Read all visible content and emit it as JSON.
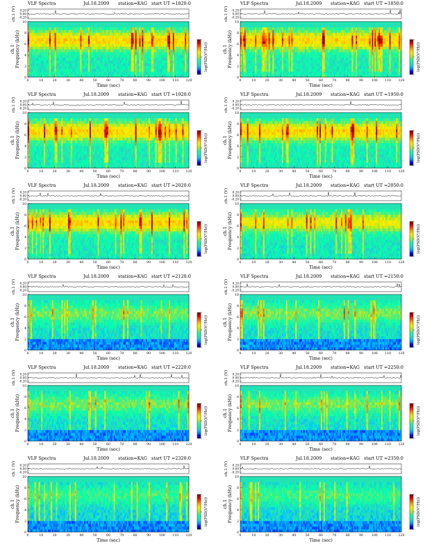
{
  "panel_text": {
    "title": "VLF Spectra",
    "date": "Jul.18.2009",
    "station": "station=KAG",
    "ut_prefix": "start  UT ="
  },
  "chart_data": [
    {
      "type": "heatmap",
      "start_ut": "1820:0",
      "xlabel": "Time (sec)",
      "ylabel": "ch.1\nFrequency (kHz)",
      "top_ylabel": "ch.1 (V)",
      "colorbar_label": "log(PSD(V²/Hz))",
      "xlim": [
        0,
        120
      ],
      "xticks": [
        0,
        10,
        20,
        30,
        40,
        50,
        60,
        70,
        80,
        90,
        100,
        110,
        120
      ],
      "ylim": [
        0,
        10
      ],
      "yticks": [
        0,
        2,
        4,
        6,
        8,
        10
      ],
      "top_yticks": [
        "0.20",
        "0.00",
        "-0.20"
      ],
      "colorbar_ticks": [
        "",
        "",
        ""
      ],
      "activity": "high"
    },
    {
      "type": "heatmap",
      "start_ut": "1850:0",
      "xlabel": "Time (sec)",
      "ylabel": "ch.1\nFrequency (kHz)",
      "top_ylabel": "ch.1 (V)",
      "colorbar_label": "log(PSD(V²/Hz))",
      "xlim": [
        0,
        120
      ],
      "xticks": [
        0,
        10,
        20,
        30,
        40,
        50,
        60,
        70,
        80,
        90,
        100,
        110,
        120
      ],
      "ylim": [
        0,
        10
      ],
      "yticks": [
        0,
        2,
        4,
        6,
        8,
        10
      ],
      "top_yticks": [
        "0.20",
        "0.00",
        "-0.20"
      ],
      "colorbar_ticks": [
        "",
        "",
        ""
      ],
      "activity": "high"
    },
    {
      "type": "heatmap",
      "start_ut": "1920:0",
      "xlabel": "Time (sec)",
      "ylabel": "ch.1\nFrequency (kHz)",
      "top_ylabel": "ch.1 (V)",
      "colorbar_label": "log(PSD(V²/Hz))",
      "xlim": [
        0,
        120
      ],
      "xticks": [
        0,
        10,
        20,
        30,
        40,
        50,
        60,
        70,
        80,
        90,
        100,
        110,
        120
      ],
      "ylim": [
        0,
        10
      ],
      "yticks": [
        0,
        2,
        4,
        6,
        8,
        10
      ],
      "top_yticks": [
        "0.20",
        "0.00",
        "-0.20"
      ],
      "colorbar_ticks": [
        "",
        "",
        ""
      ],
      "activity": "high"
    },
    {
      "type": "heatmap",
      "start_ut": "1950:0",
      "xlabel": "Time (sec)",
      "ylabel": "ch.1\nFrequency (kHz)",
      "top_ylabel": "ch.1 (V)",
      "colorbar_label": "log(PSD(V²/Hz))",
      "xlim": [
        0,
        120
      ],
      "xticks": [
        0,
        10,
        20,
        30,
        40,
        50,
        60,
        70,
        80,
        90,
        100,
        110,
        120
      ],
      "ylim": [
        0,
        10
      ],
      "yticks": [
        0,
        2,
        4,
        6,
        8,
        10
      ],
      "top_yticks": [
        "0.20",
        "0.00",
        "-0.20"
      ],
      "colorbar_ticks": [
        "",
        "",
        ""
      ],
      "activity": "high"
    },
    {
      "type": "heatmap",
      "start_ut": "2020:0",
      "xlabel": "Time (sec)",
      "ylabel": "ch.1\nFrequency (kHz)",
      "top_ylabel": "ch.1 (V)",
      "colorbar_label": "log(PSD(V²/Hz))",
      "xlim": [
        0,
        120
      ],
      "xticks": [
        0,
        10,
        20,
        30,
        40,
        50,
        60,
        70,
        80,
        90,
        100,
        110,
        120
      ],
      "ylim": [
        0,
        10
      ],
      "yticks": [
        0,
        2,
        4,
        6,
        8,
        10
      ],
      "top_yticks": [
        "0.20",
        "0.00",
        "-0.20"
      ],
      "colorbar_ticks": [
        "",
        "",
        ""
      ],
      "activity": "high"
    },
    {
      "type": "heatmap",
      "start_ut": "2050:0",
      "xlabel": "Time (sec)",
      "ylabel": "ch.1\nFrequency (kHz)",
      "top_ylabel": "ch.1 (V)",
      "colorbar_label": "log(PSD(V²/Hz))",
      "xlim": [
        0,
        120
      ],
      "xticks": [
        0,
        10,
        20,
        30,
        40,
        50,
        60,
        70,
        80,
        90,
        100,
        110,
        120
      ],
      "ylim": [
        0,
        10
      ],
      "yticks": [
        0,
        2,
        4,
        6,
        8,
        10
      ],
      "top_yticks": [
        "0.20",
        "0.00",
        "-0.20"
      ],
      "colorbar_ticks": [
        "",
        "",
        ""
      ],
      "activity": "medium"
    },
    {
      "type": "heatmap",
      "start_ut": "2120:0",
      "xlabel": "Time (sec)",
      "ylabel": "ch.1\nFrequency (kHz)",
      "top_ylabel": "ch.1 (V)",
      "colorbar_label": "log(PSD(V²/Hz))",
      "xlim": [
        0,
        120
      ],
      "xticks": [
        0,
        10,
        20,
        30,
        40,
        50,
        60,
        70,
        80,
        90,
        100,
        110,
        120
      ],
      "ylim": [
        0,
        10
      ],
      "yticks": [
        0,
        2,
        4,
        6,
        8,
        10
      ],
      "top_yticks": [
        "0.20",
        "0.00",
        "-0.20"
      ],
      "colorbar_ticks": [
        "",
        "",
        ""
      ],
      "activity": "low"
    },
    {
      "type": "heatmap",
      "start_ut": "2150:0",
      "xlabel": "Time (sec)",
      "ylabel": "ch.1\nFrequency (kHz)",
      "top_ylabel": "ch.1 (V)",
      "colorbar_label": "log(PSD(V²/Hz))",
      "xlim": [
        0,
        120
      ],
      "xticks": [
        0,
        10,
        20,
        30,
        40,
        50,
        60,
        70,
        80,
        90,
        100,
        110,
        120
      ],
      "ylim": [
        0,
        10
      ],
      "yticks": [
        0,
        2,
        4,
        6,
        8,
        10
      ],
      "top_yticks": [
        "0.20",
        "0.00",
        "-0.20"
      ],
      "colorbar_ticks": [
        "",
        "",
        ""
      ],
      "activity": "low"
    },
    {
      "type": "heatmap",
      "start_ut": "2220:0",
      "xlabel": "Time (sec)",
      "ylabel": "ch.1\nFrequency (kHz)",
      "top_ylabel": "ch.1 (V)",
      "colorbar_label": "log(PSD(V²/Hz))",
      "xlim": [
        0,
        120
      ],
      "xticks": [
        0,
        10,
        20,
        30,
        40,
        50,
        60,
        70,
        80,
        90,
        100,
        110,
        120
      ],
      "ylim": [
        0,
        10
      ],
      "yticks": [
        0,
        2,
        4,
        6,
        8,
        10
      ],
      "top_yticks": [
        "0.20",
        "0.00",
        "-0.20"
      ],
      "colorbar_ticks": [
        "",
        "",
        ""
      ],
      "activity": "low"
    },
    {
      "type": "heatmap",
      "start_ut": "2250:0",
      "xlabel": "Time (sec)",
      "ylabel": "ch.1\nFrequency (kHz)",
      "top_ylabel": "ch.1 (V)",
      "colorbar_label": "log(PSD(V²/Hz))",
      "xlim": [
        0,
        120
      ],
      "xticks": [
        0,
        10,
        20,
        30,
        40,
        50,
        60,
        70,
        80,
        90,
        100,
        110,
        120
      ],
      "ylim": [
        0,
        10
      ],
      "yticks": [
        0,
        2,
        4,
        6,
        8,
        10
      ],
      "top_yticks": [
        "0.20",
        "0.00",
        "-0.20"
      ],
      "colorbar_ticks": [
        "",
        "",
        ""
      ],
      "activity": "low"
    },
    {
      "type": "heatmap",
      "start_ut": "2320:0",
      "xlabel": "Time (sec)",
      "ylabel": "ch.1\nFrequency (kHz)",
      "top_ylabel": "ch.1 (V)",
      "colorbar_label": "log(PSD(V²/Hz))",
      "xlim": [
        0,
        120
      ],
      "xticks": [
        0,
        10,
        20,
        30,
        40,
        50,
        60,
        70,
        80,
        90,
        100,
        110,
        120
      ],
      "ylim": [
        0,
        10
      ],
      "yticks": [
        0,
        2,
        4,
        6,
        8,
        10
      ],
      "top_yticks": [
        "0.20",
        "0.00",
        "-0.20"
      ],
      "colorbar_ticks": [
        "",
        "",
        ""
      ],
      "activity": "vlow"
    },
    {
      "type": "heatmap",
      "start_ut": "2350:0",
      "xlabel": "Time (sec)",
      "ylabel": "ch.1\nFrequency (kHz)",
      "top_ylabel": "ch.1 (V)",
      "colorbar_label": "log(PSD(V²/Hz))",
      "xlim": [
        0,
        120
      ],
      "xticks": [
        0,
        10,
        20,
        30,
        40,
        50,
        60,
        70,
        80,
        90,
        100,
        110,
        120
      ],
      "ylim": [
        0,
        10
      ],
      "yticks": [
        0,
        2,
        4,
        6,
        8,
        10
      ],
      "top_yticks": [
        "0.20",
        "0.00",
        "-0.20"
      ],
      "colorbar_ticks": [
        "",
        "",
        ""
      ],
      "activity": "vlow"
    }
  ],
  "colormap": [
    "#00007f",
    "#0000ff",
    "#007fff",
    "#00c8ff",
    "#2adcb4",
    "#00ffb0",
    "#3ff08a",
    "#9ce83b",
    "#d8ef00",
    "#ffea00",
    "#ffbf00",
    "#ff7f00",
    "#ff3300",
    "#d40000",
    "#8b0000"
  ]
}
